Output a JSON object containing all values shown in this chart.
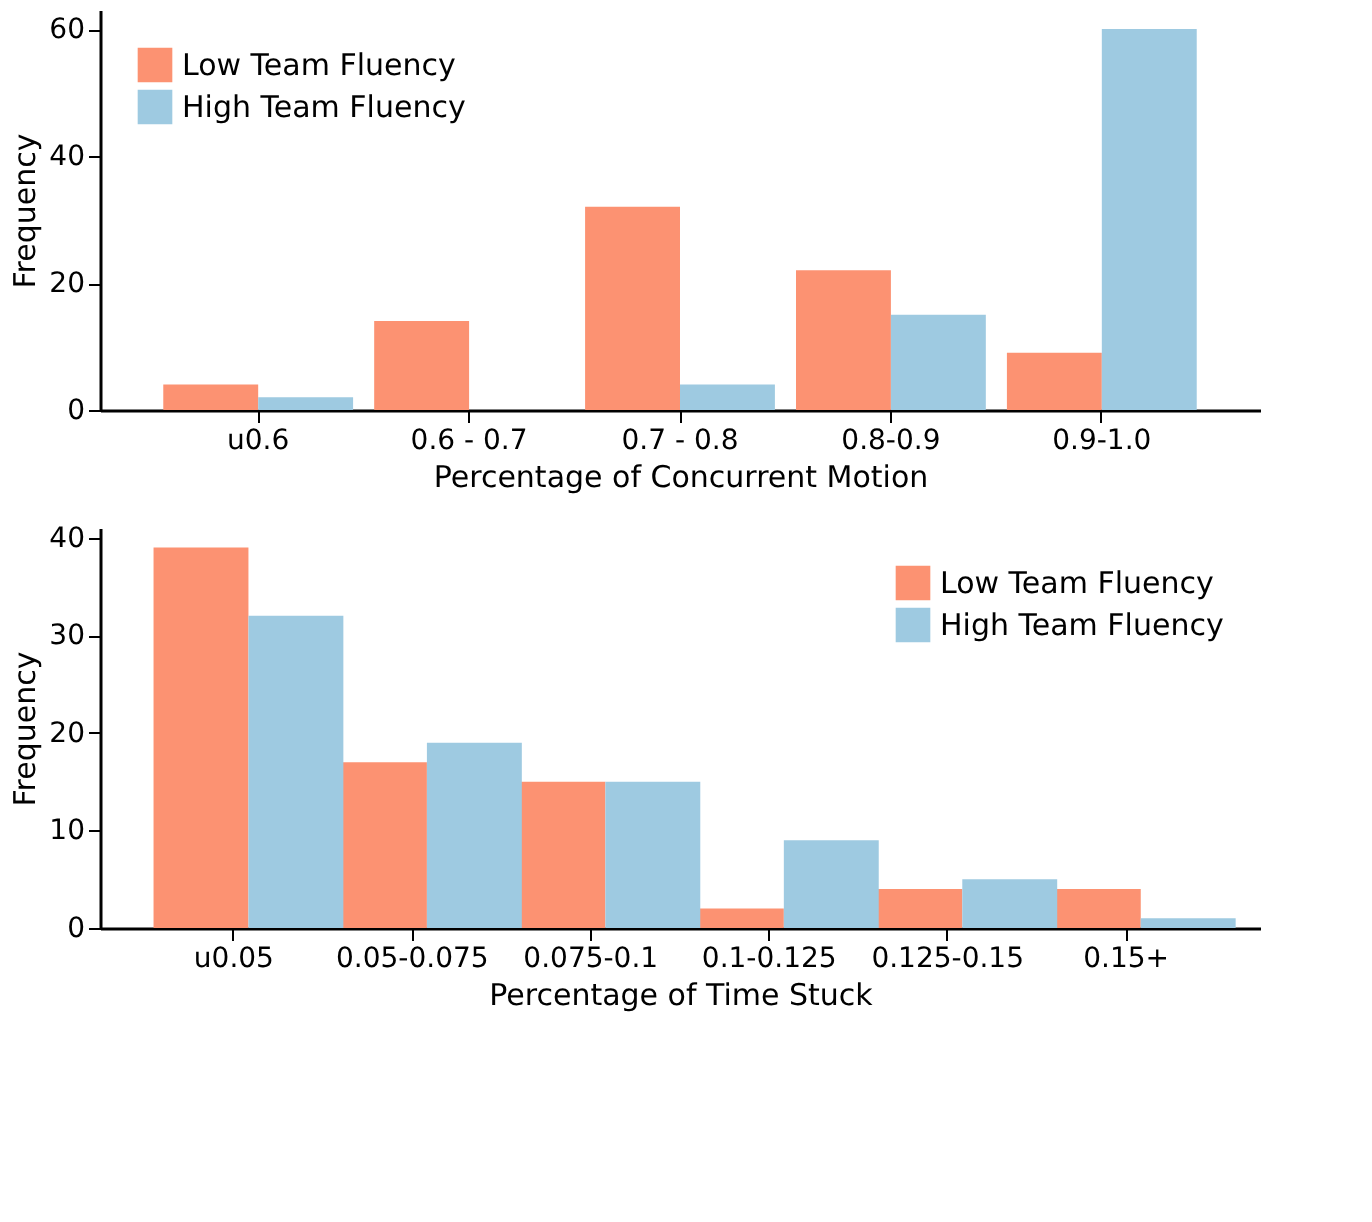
{
  "chart_data": [
    {
      "type": "bar",
      "xlabel": "Percentage of Concurrent Motion",
      "ylabel": "Frequency",
      "categories": [
        "u0.6",
        "0.6 - 0.7",
        "0.7 - 0.8",
        "0.8-0.9",
        "0.9-1.0"
      ],
      "series": [
        {
          "name": "Low Team Fluency",
          "color": "#fc9272",
          "values": [
            4,
            14,
            32,
            22,
            9
          ]
        },
        {
          "name": "High Team Fluency",
          "color": "#9ecae1",
          "values": [
            2,
            0,
            4,
            15,
            60
          ]
        }
      ],
      "ylim": [
        0,
        63
      ],
      "yticks": [
        0,
        20,
        40,
        60
      ],
      "grid": false,
      "legend": "top left"
    },
    {
      "type": "bar",
      "xlabel": "Percentage of Time Stuck",
      "ylabel": "Frequency",
      "categories": [
        "u0.05",
        "0.05-0.075",
        "0.075-0.1",
        "0.1-0.125",
        "0.125-0.15",
        "0.15+"
      ],
      "series": [
        {
          "name": "Low Team Fluency",
          "color": "#fc9272",
          "values": [
            39,
            17,
            15,
            2,
            4,
            4
          ]
        },
        {
          "name": "High Team Fluency",
          "color": "#9ecae1",
          "values": [
            32,
            19,
            15,
            9,
            5,
            1
          ]
        }
      ],
      "ylim": [
        0,
        41
      ],
      "yticks": [
        0,
        10,
        20,
        30,
        40
      ],
      "grid": false,
      "legend": "top right"
    }
  ]
}
